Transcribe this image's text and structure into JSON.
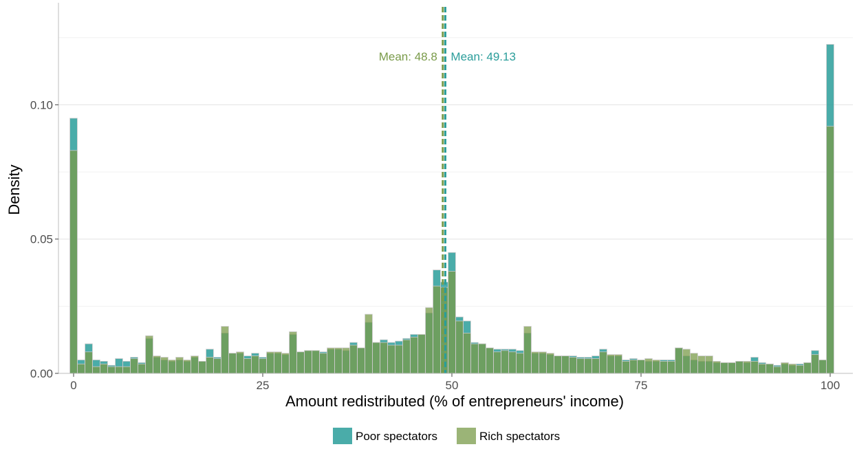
{
  "chart_data": {
    "type": "bar",
    "xlabel": "Amount redistributed (% of entrepreneurs' income)",
    "ylabel": "Density",
    "xlim": [
      -2,
      103
    ],
    "ylim": [
      0,
      0.138
    ],
    "x_ticks": [
      0,
      25,
      50,
      75,
      100
    ],
    "x_tick_labels": [
      "0",
      "25",
      "50",
      "75",
      "100"
    ],
    "y_ticks": [
      0,
      0.05,
      0.1
    ],
    "y_tick_labels": [
      "0.00",
      "0.05",
      "0.10"
    ],
    "grid": true,
    "legend_position": "bottom",
    "x": [
      0,
      1,
      2,
      3,
      4,
      5,
      6,
      7,
      8,
      9,
      10,
      11,
      12,
      13,
      14,
      15,
      16,
      17,
      18,
      19,
      20,
      21,
      22,
      23,
      24,
      25,
      26,
      27,
      28,
      29,
      30,
      31,
      32,
      33,
      34,
      35,
      36,
      37,
      38,
      39,
      40,
      41,
      42,
      43,
      44,
      45,
      46,
      47,
      48,
      49,
      50,
      51,
      52,
      53,
      54,
      55,
      56,
      57,
      58,
      59,
      60,
      61,
      62,
      63,
      64,
      65,
      66,
      67,
      68,
      69,
      70,
      71,
      72,
      73,
      74,
      75,
      76,
      77,
      78,
      79,
      80,
      81,
      82,
      83,
      84,
      85,
      86,
      87,
      88,
      89,
      90,
      91,
      92,
      93,
      94,
      95,
      96,
      97,
      98,
      99,
      100
    ],
    "series": [
      {
        "name": "Poor spectators",
        "color": "#2a9d9a",
        "values": [
          0.095,
          0.005,
          0.011,
          0.005,
          0.0045,
          0.003,
          0.0055,
          0.0045,
          0.006,
          0.004,
          0.013,
          0.006,
          0.005,
          0.0045,
          0.005,
          0.0045,
          0.006,
          0.0045,
          0.009,
          0.006,
          0.015,
          0.0075,
          0.0075,
          0.0065,
          0.0075,
          0.006,
          0.0075,
          0.0075,
          0.007,
          0.0145,
          0.008,
          0.0085,
          0.0085,
          0.008,
          0.009,
          0.009,
          0.0085,
          0.0115,
          0.0095,
          0.019,
          0.0115,
          0.0125,
          0.0115,
          0.012,
          0.013,
          0.0145,
          0.0145,
          0.0225,
          0.0385,
          0.034,
          0.045,
          0.021,
          0.0195,
          0.0115,
          0.011,
          0.0095,
          0.009,
          0.009,
          0.009,
          0.0085,
          0.015,
          0.0075,
          0.0075,
          0.007,
          0.0065,
          0.0065,
          0.0065,
          0.006,
          0.006,
          0.0065,
          0.009,
          0.0065,
          0.0065,
          0.005,
          0.0055,
          0.005,
          0.0045,
          0.0045,
          0.005,
          0.005,
          0.0095,
          0.0065,
          0.005,
          0.0045,
          0.0045,
          0.004,
          0.004,
          0.004,
          0.0045,
          0.004,
          0.006,
          0.004,
          0.0035,
          0.003,
          0.0035,
          0.003,
          0.0035,
          0.004,
          0.0085,
          0.005,
          0.1225
        ]
      },
      {
        "name": "Rich spectators",
        "color": "#7a9b4a",
        "values": [
          0.083,
          0.0035,
          0.008,
          0.0025,
          0.0035,
          0.0025,
          0.0025,
          0.0025,
          0.0055,
          0.0035,
          0.014,
          0.0065,
          0.006,
          0.005,
          0.006,
          0.005,
          0.0065,
          0.0045,
          0.006,
          0.0055,
          0.0175,
          0.0075,
          0.008,
          0.0055,
          0.0065,
          0.0055,
          0.008,
          0.008,
          0.0075,
          0.0155,
          0.008,
          0.0085,
          0.0085,
          0.0075,
          0.0095,
          0.0095,
          0.0095,
          0.0105,
          0.0095,
          0.022,
          0.0115,
          0.0115,
          0.0105,
          0.0105,
          0.0125,
          0.0135,
          0.0145,
          0.0245,
          0.0325,
          0.032,
          0.038,
          0.0195,
          0.015,
          0.011,
          0.011,
          0.0095,
          0.008,
          0.0085,
          0.008,
          0.0075,
          0.0175,
          0.008,
          0.008,
          0.0075,
          0.0065,
          0.0065,
          0.006,
          0.0055,
          0.0055,
          0.0055,
          0.008,
          0.007,
          0.007,
          0.0045,
          0.005,
          0.005,
          0.0055,
          0.005,
          0.0045,
          0.0045,
          0.0095,
          0.009,
          0.0075,
          0.0065,
          0.0065,
          0.0045,
          0.004,
          0.004,
          0.0045,
          0.0045,
          0.0045,
          0.0035,
          0.0035,
          0.0025,
          0.004,
          0.0035,
          0.003,
          0.004,
          0.007,
          0.005,
          0.092
        ]
      }
    ],
    "annotations": [
      {
        "text": "Mean: 48.8",
        "x": 48.8,
        "series": "Rich spectators",
        "color": "#7a9b4a",
        "side": "left"
      },
      {
        "text": "Mean: 49.13",
        "x": 49.13,
        "series": "Poor spectators",
        "color": "#2a9d9a",
        "side": "right"
      }
    ]
  }
}
